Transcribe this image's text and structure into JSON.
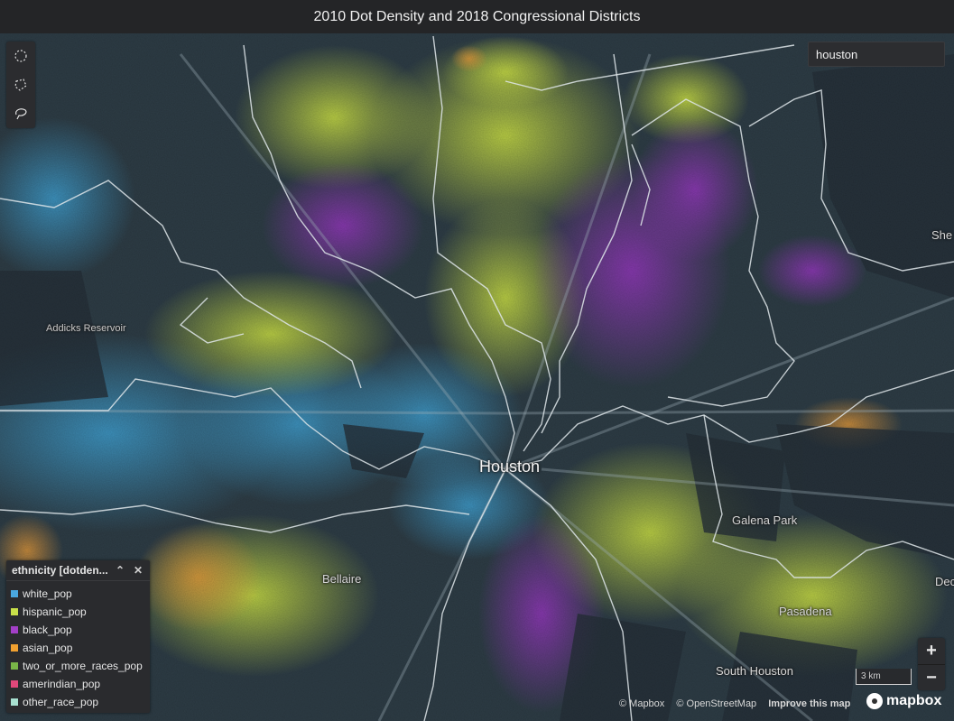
{
  "app": {
    "title": "2010 Dot Density and 2018 Congressional Districts"
  },
  "search": {
    "value": "houston"
  },
  "legend": {
    "title": "ethnicity [dotden...",
    "collapse_icon": "chevron-up-icon",
    "close_icon": "close-icon",
    "items": [
      {
        "label": "white_pop",
        "color": "#4aa8e0"
      },
      {
        "label": "hispanic_pop",
        "color": "#c9e04a"
      },
      {
        "label": "black_pop",
        "color": "#a33fc7"
      },
      {
        "label": "asian_pop",
        "color": "#f0a030"
      },
      {
        "label": "two_or_more_races_pop",
        "color": "#7ab648"
      },
      {
        "label": "amerindian_pop",
        "color": "#e0487a"
      },
      {
        "label": "other_race_pop",
        "color": "#a8e0d0"
      }
    ]
  },
  "map": {
    "places": {
      "houston": "Houston",
      "bellaire": "Bellaire",
      "galena_park": "Galena Park",
      "pasadena": "Pasadena",
      "south_houston": "South Houston",
      "addicks": "Addicks Reservoir",
      "she": "She",
      "dec": "Dec"
    }
  },
  "controls": {
    "zoom_in": "+",
    "zoom_out": "−",
    "scale": "3 km",
    "draw_tools": [
      "circle-select-icon",
      "polygon-select-icon",
      "lasso-select-icon"
    ]
  },
  "attribution": {
    "mapbox": "© Mapbox",
    "osm": "© OpenStreetMap",
    "improve": "Improve this map",
    "logo": "mapbox"
  }
}
